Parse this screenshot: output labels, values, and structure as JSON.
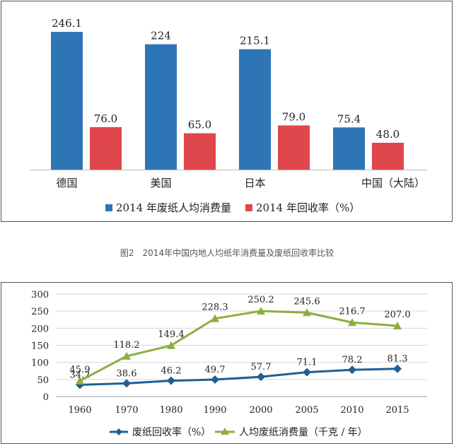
{
  "caption": "图2　2014年中国内地人均纸年消费量及废纸回收率比较",
  "chart_data": [
    {
      "type": "bar",
      "categories": [
        "德国",
        "美国",
        "日本",
        "中国（大陆）"
      ],
      "series": [
        {
          "name": "2014 年废纸人均消费量",
          "values": [
            246.1,
            224,
            215.1,
            75.4
          ],
          "labels": [
            "246.1",
            "224",
            "215.1",
            "75.4"
          ],
          "color": "#2e75b6"
        },
        {
          "name": "2014 年回收率（%）",
          "values": [
            76.0,
            65.0,
            79.0,
            48.0
          ],
          "labels": [
            "76.0",
            "65.0",
            "79.0",
            "48.0"
          ],
          "color": "#e0474c"
        }
      ],
      "ylim": [
        0,
        250
      ],
      "grid": false,
      "legend": "bottom"
    },
    {
      "type": "line",
      "categories": [
        "1960",
        "1970",
        "1980",
        "1990",
        "2000",
        "2005",
        "2010",
        "2015"
      ],
      "series": [
        {
          "name": "废纸回收率（%）",
          "values": [
            34.2,
            38.6,
            46.2,
            49.7,
            57.7,
            71.1,
            78.2,
            81.3
          ],
          "labels": [
            "34.2",
            "38.6",
            "46.2",
            "49.7",
            "57.7",
            "71.1",
            "78.2",
            "81.3"
          ],
          "color": "#1f5f96",
          "marker": "diamond"
        },
        {
          "name": "人均废纸消费量（千克 / 年）",
          "values": [
            45.9,
            118.2,
            149.4,
            228.3,
            250.2,
            245.6,
            216.7,
            207.0
          ],
          "labels": [
            "45.9",
            "118.2",
            "149.4",
            "228.3",
            "250.2",
            "245.6",
            "216.7",
            "207.0"
          ],
          "color": "#8cae3f",
          "marker": "triangle"
        }
      ],
      "yticks": [
        "0",
        "50",
        "100",
        "150",
        "200",
        "250",
        "300"
      ],
      "ylim": [
        0,
        300
      ],
      "grid": true,
      "legend": "bottom"
    }
  ]
}
